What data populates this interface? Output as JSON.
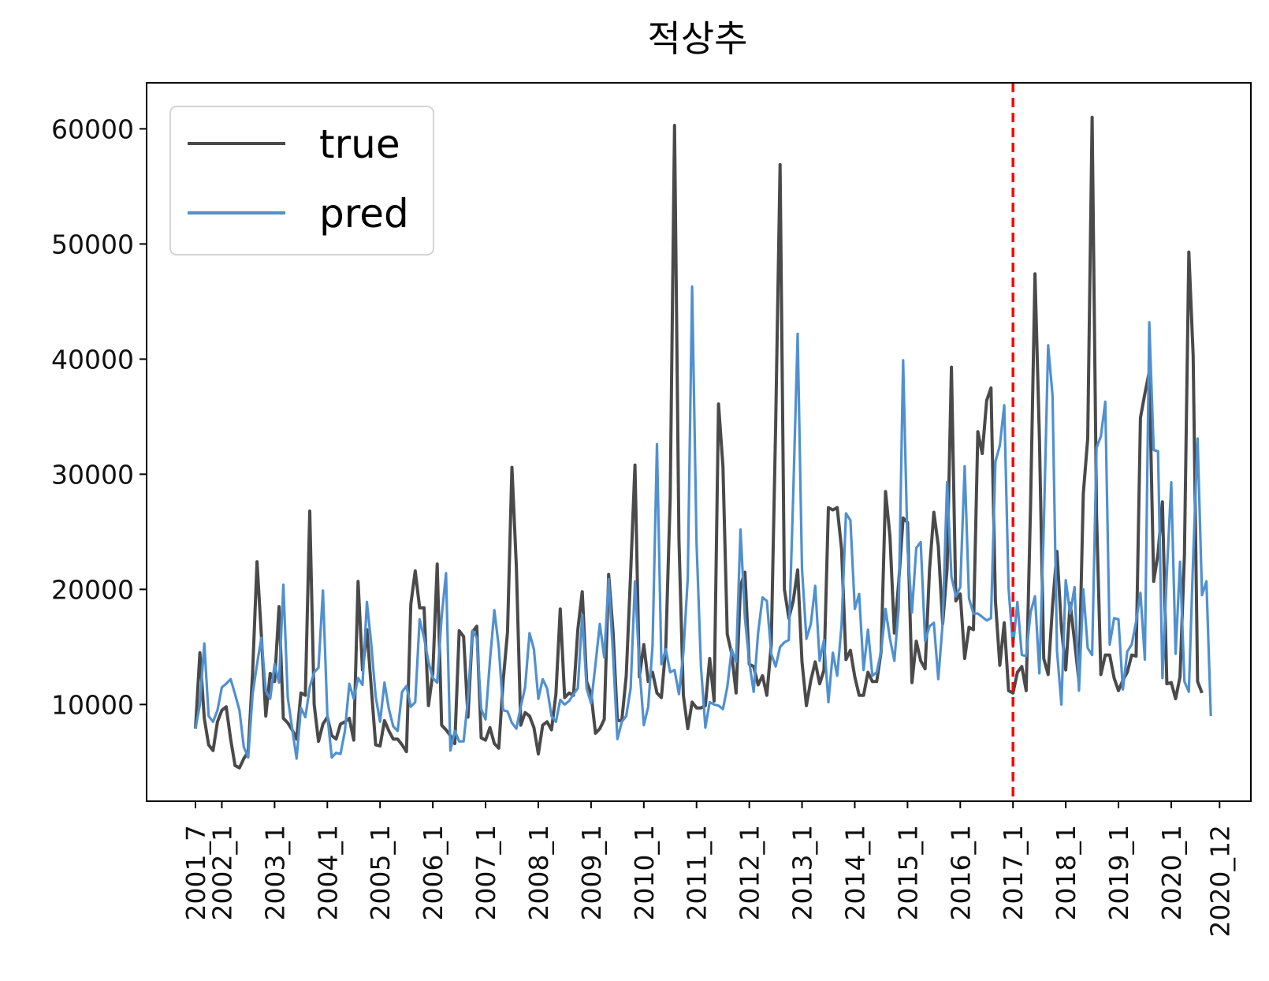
{
  "chart_data": {
    "type": "line",
    "title": "적상추",
    "xlabel": "",
    "ylabel": "",
    "ylim": [
      1600,
      64000
    ],
    "y_ticks": [
      10000,
      20000,
      30000,
      40000,
      50000,
      60000
    ],
    "x_tick_labels": [
      "2001_7",
      "2002_1",
      "2003_1",
      "2004_1",
      "2005_1",
      "2006_1",
      "2007_1",
      "2008_1",
      "2009_1",
      "2010_1",
      "2011_1",
      "2012_1",
      "2013_1",
      "2014_1",
      "2015_1",
      "2016_1",
      "2017_1",
      "2018_1",
      "2019_1",
      "2020_1",
      "2020_12"
    ],
    "x_tick_positions": [
      0,
      6,
      18,
      30,
      42,
      54,
      66,
      78,
      90,
      102,
      114,
      126,
      138,
      150,
      162,
      174,
      186,
      198,
      210,
      222,
      233
    ],
    "split_index": 186,
    "split_line_color": "#ff0000",
    "legend": {
      "position": "top-left",
      "entries": [
        "true",
        "pred"
      ]
    },
    "grid": false,
    "series": [
      {
        "name": "true",
        "color": "#4a4a4a",
        "values": [
          7900,
          14500,
          8800,
          6500,
          6000,
          8500,
          9500,
          9800,
          7000,
          4700,
          4500,
          5300,
          5900,
          12800,
          22400,
          16000,
          9000,
          12700,
          12000,
          18500,
          8800,
          8400,
          7800,
          7000,
          11000,
          10800,
          26800,
          10000,
          6800,
          8300,
          8900,
          7300,
          7000,
          8300,
          8500,
          8800,
          6900,
          20700,
          13000,
          16500,
          11400,
          6500,
          6400,
          8600,
          7700,
          7000,
          7000,
          6500,
          5900,
          18700,
          21600,
          18400,
          18400,
          9900,
          12700,
          22200,
          8200,
          7800,
          7300,
          6600,
          16400,
          15900,
          8900,
          16300,
          16800,
          7100,
          6900,
          8000,
          6600,
          6200,
          12000,
          16300,
          30600,
          22000,
          8200,
          9300,
          9000,
          8000,
          5700,
          8200,
          8500,
          7800,
          10900,
          18300,
          10600,
          11000,
          10800,
          16500,
          19800,
          12000,
          10900,
          7500,
          7900,
          8700,
          21300,
          16300,
          8600,
          8600,
          12500,
          21400,
          30800,
          12400,
          15200,
          12000,
          12800,
          11000,
          10600,
          15000,
          28000,
          60300,
          24300,
          10800,
          7900,
          10200,
          9700,
          9700,
          9900,
          14000,
          10300,
          36100,
          30700,
          16100,
          14400,
          11000,
          20300,
          21500,
          13500,
          13300,
          11700,
          12500,
          10800,
          15200,
          34300,
          56900,
          20000,
          17500,
          19000,
          21700,
          13700,
          9900,
          12100,
          13700,
          11800,
          13000,
          27100,
          26900,
          27100,
          23500,
          13900,
          14700,
          12400,
          10800,
          10800,
          12800,
          12000,
          12000,
          14600,
          28500,
          24600,
          16200,
          20600,
          26200,
          25800,
          11900,
          15500,
          13800,
          13100,
          21700,
          26700,
          23800,
          17000,
          21800,
          39300,
          19000,
          19600,
          14000,
          16700,
          16500,
          33700,
          31800,
          36400,
          37500,
          19000,
          13400,
          17100,
          11200,
          11000,
          12800,
          13300,
          11200,
          27300,
          47400,
          33200,
          14000,
          12600,
          18600,
          23300,
          16700,
          13000,
          18800,
          15500,
          12000,
          28300,
          33100,
          61000,
          26500,
          12600,
          14300,
          14300,
          12300,
          11200,
          12100,
          12800,
          14300,
          14200,
          34900,
          37000,
          38900,
          20700,
          23100,
          27600,
          11800,
          11900,
          10500,
          12400,
          23000,
          49300,
          40300,
          12000,
          11000
        ]
      },
      {
        "name": "pred",
        "color": "#5090d0",
        "values": [
          7900,
          10000,
          15300,
          9000,
          8500,
          9500,
          11500,
          11800,
          12200,
          10900,
          9500,
          6300,
          5400,
          10900,
          13500,
          15800,
          11200,
          10500,
          13500,
          11900,
          20400,
          10600,
          7900,
          5300,
          9700,
          8900,
          11500,
          12800,
          13200,
          19900,
          9100,
          5400,
          5800,
          5700,
          7700,
          11800,
          10500,
          12300,
          11700,
          18900,
          15200,
          10700,
          8500,
          11900,
          9600,
          8100,
          7700,
          11100,
          11600,
          9800,
          10200,
          17400,
          15800,
          13700,
          12300,
          11900,
          17600,
          21400,
          6000,
          7700,
          6800,
          6800,
          10500,
          16400,
          15800,
          9600,
          8700,
          13800,
          18200,
          15000,
          9500,
          9400,
          8400,
          7900,
          9800,
          11500,
          16200,
          14800,
          10500,
          12200,
          11400,
          9000,
          8500,
          10400,
          10000,
          10300,
          10900,
          11400,
          17800,
          11400,
          10100,
          13500,
          17000,
          14100,
          20900,
          14300,
          7000,
          8500,
          9000,
          11400,
          20700,
          13300,
          8200,
          9800,
          15100,
          32600,
          13500,
          14800,
          12800,
          13000,
          10900,
          14500,
          21000,
          46300,
          24100,
          13300,
          8000,
          10200,
          10000,
          9900,
          9600,
          11500,
          14800,
          13700,
          25200,
          17500,
          13700,
          11100,
          16200,
          19300,
          19000,
          14400,
          13300,
          15000,
          15400,
          15600,
          28300,
          42200,
          21800,
          15700,
          17000,
          20300,
          13800,
          15600,
          10200,
          14500,
          12500,
          16900,
          26600,
          26000,
          18300,
          19600,
          13000,
          16500,
          12500,
          12800,
          14600,
          18300,
          15700,
          13800,
          18400,
          39900,
          23600,
          18000,
          23600,
          24100,
          15500,
          16800,
          17100,
          12200,
          17100,
          29300,
          21100,
          19400,
          20200,
          30700,
          19200,
          17900,
          17900,
          17600,
          17300,
          17500,
          31100,
          32500,
          36000,
          20100,
          15000,
          18900,
          14300,
          14200,
          18000,
          19400,
          12700,
          25300,
          41200,
          36800,
          14700,
          10000,
          20800,
          17900,
          20200,
          11200,
          20000,
          14900,
          14300,
          32300,
          33300,
          36300,
          15200,
          17500,
          17400,
          11300,
          14600,
          15200,
          17200,
          19700,
          13900,
          43200,
          32100,
          32000,
          12300,
          21400,
          29300,
          14400,
          22400,
          12000,
          11100,
          22800,
          33100,
          19500,
          20700,
          9000
        ]
      }
    ]
  }
}
